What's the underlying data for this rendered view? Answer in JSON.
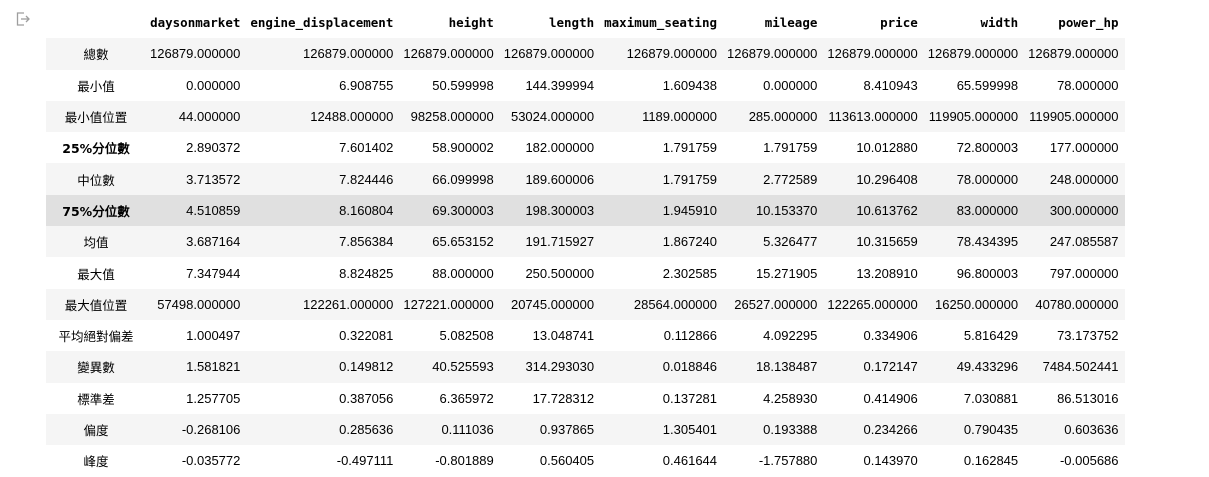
{
  "icons": {
    "output": "output-arrow-icon"
  },
  "columns": [
    "",
    "daysonmarket",
    "engine_displacement",
    "height",
    "length",
    "maximum_seating",
    "mileage",
    "price",
    "width",
    "power_hp"
  ],
  "rows": [
    {
      "label": "總數",
      "values": [
        "126879.000000",
        "126879.000000",
        "126879.000000",
        "126879.000000",
        "126879.000000",
        "126879.000000",
        "126879.000000",
        "126879.000000",
        "126879.000000"
      ]
    },
    {
      "label": "最小值",
      "values": [
        "0.000000",
        "6.908755",
        "50.599998",
        "144.399994",
        "1.609438",
        "0.000000",
        "8.410943",
        "65.599998",
        "78.000000"
      ]
    },
    {
      "label": "最小值位置",
      "values": [
        "44.000000",
        "12488.000000",
        "98258.000000",
        "53024.000000",
        "1189.000000",
        "285.000000",
        "113613.000000",
        "119905.000000",
        "119905.000000"
      ]
    },
    {
      "label": "25%分位數",
      "values": [
        "2.890372",
        "7.601402",
        "58.900002",
        "182.000000",
        "1.791759",
        "1.791759",
        "10.012880",
        "72.800003",
        "177.000000"
      ]
    },
    {
      "label": "中位數",
      "values": [
        "3.713572",
        "7.824446",
        "66.099998",
        "189.600006",
        "1.791759",
        "2.772589",
        "10.296408",
        "78.000000",
        "248.000000"
      ]
    },
    {
      "label": "75%分位數",
      "values": [
        "4.510859",
        "8.160804",
        "69.300003",
        "198.300003",
        "1.945910",
        "10.153370",
        "10.613762",
        "83.000000",
        "300.000000"
      ]
    },
    {
      "label": "均值",
      "values": [
        "3.687164",
        "7.856384",
        "65.653152",
        "191.715927",
        "1.867240",
        "5.326477",
        "10.315659",
        "78.434395",
        "247.085587"
      ]
    },
    {
      "label": "最大值",
      "values": [
        "7.347944",
        "8.824825",
        "88.000000",
        "250.500000",
        "2.302585",
        "15.271905",
        "13.208910",
        "96.800003",
        "797.000000"
      ]
    },
    {
      "label": "最大值位置",
      "values": [
        "57498.000000",
        "122261.000000",
        "127221.000000",
        "20745.000000",
        "28564.000000",
        "26527.000000",
        "122265.000000",
        "16250.000000",
        "40780.000000"
      ]
    },
    {
      "label": "平均絕對偏差",
      "values": [
        "1.000497",
        "0.322081",
        "5.082508",
        "13.048741",
        "0.112866",
        "4.092295",
        "0.334906",
        "5.816429",
        "73.173752"
      ]
    },
    {
      "label": "變異數",
      "values": [
        "1.581821",
        "0.149812",
        "40.525593",
        "314.293030",
        "0.018846",
        "18.138487",
        "0.172147",
        "49.433296",
        "7484.502441"
      ]
    },
    {
      "label": "標準差",
      "values": [
        "1.257705",
        "0.387056",
        "6.365972",
        "17.728312",
        "0.137281",
        "4.258930",
        "0.414906",
        "7.030881",
        "86.513016"
      ]
    },
    {
      "label": "偏度",
      "values": [
        "-0.268106",
        "0.285636",
        "0.111036",
        "0.937865",
        "1.305401",
        "0.193388",
        "0.234266",
        "0.790435",
        "0.603636"
      ]
    },
    {
      "label": "峰度",
      "values": [
        "-0.035772",
        "-0.497111",
        "-0.801889",
        "0.560405",
        "0.461644",
        "-1.757880",
        "0.143970",
        "0.162845",
        "-0.005686"
      ]
    }
  ],
  "bold_row_labels": [
    "25%分位數",
    "75%分位數"
  ],
  "highlighted_row": "75%分位數"
}
